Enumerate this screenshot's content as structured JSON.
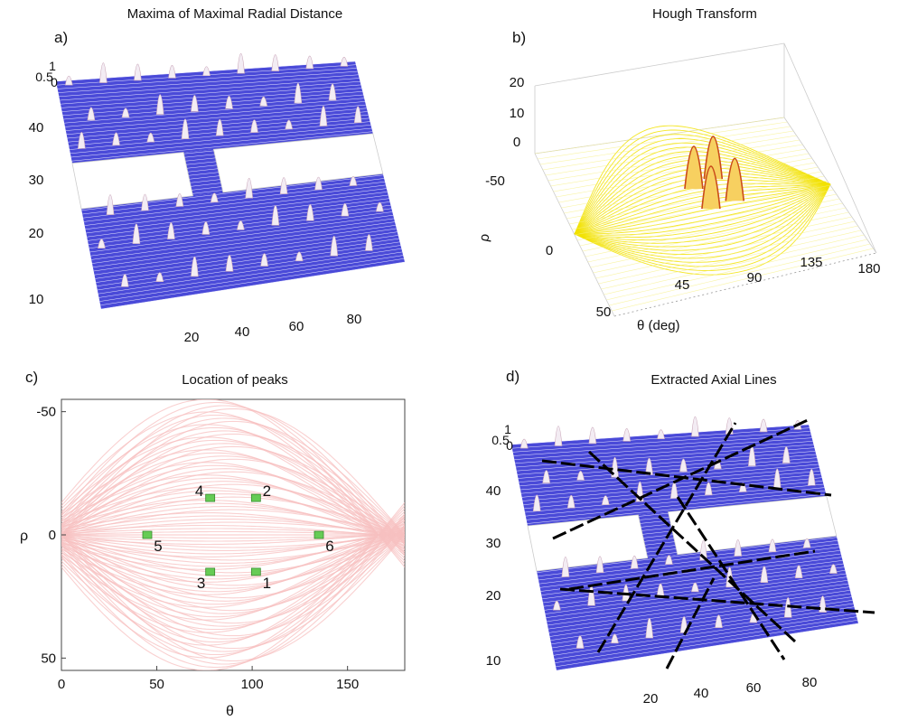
{
  "chart_data": [
    {
      "panel": "a)",
      "type": "surface",
      "title": "Maxima of Maximal Radial Distance",
      "xticks": [
        "20",
        "40",
        "60",
        "80"
      ],
      "yticks": [
        "10",
        "20",
        "30",
        "40"
      ],
      "zticks": [
        "0.5",
        "1",
        "0"
      ],
      "xlim": [
        0,
        95
      ],
      "ylim": [
        0,
        50
      ],
      "surface_color": "#4a4ad8",
      "peak_color": "#f0e6f0"
    },
    {
      "panel": "b)",
      "type": "surface",
      "title": "Hough Transform",
      "xlabel": "θ (deg)",
      "ylabel": "ρ",
      "xticks": [
        "45",
        "90",
        "135",
        "180"
      ],
      "yticks": [
        "-50",
        "0",
        "50"
      ],
      "zticks": [
        "0",
        "10",
        "20"
      ],
      "xlim": [
        0,
        180
      ],
      "ylim": [
        -50,
        50
      ],
      "zlim": [
        0,
        20
      ],
      "surface_color": "#f2e200",
      "peak_color": "#c94a1a"
    },
    {
      "panel": "c)",
      "type": "scatter",
      "title": "Location of peaks",
      "xlabel": "θ",
      "ylabel": "ρ",
      "xticks": [
        "0",
        "50",
        "100",
        "150"
      ],
      "yticks": [
        "-50",
        "0",
        "50"
      ],
      "xlim": [
        0,
        180
      ],
      "ylim": [
        -55,
        55
      ],
      "background_color": "#f7c0c0",
      "marker_color": "#66cc55",
      "points": [
        {
          "label": "1",
          "theta": 102,
          "rho": 15
        },
        {
          "label": "2",
          "theta": 102,
          "rho": -15
        },
        {
          "label": "3",
          "theta": 78,
          "rho": 15
        },
        {
          "label": "4",
          "theta": 78,
          "rho": -15
        },
        {
          "label": "5",
          "theta": 45,
          "rho": 0
        },
        {
          "label": "6",
          "theta": 135,
          "rho": 0
        }
      ]
    },
    {
      "panel": "d)",
      "type": "surface",
      "title": "Extracted Axial Lines",
      "xticks": [
        "20",
        "40",
        "60",
        "80"
      ],
      "yticks": [
        "10",
        "20",
        "30",
        "40"
      ],
      "zticks": [
        "0.5",
        "1",
        "0"
      ],
      "xlim": [
        0,
        95
      ],
      "ylim": [
        0,
        50
      ],
      "surface_color": "#4a4ad8",
      "line_color": "#000000"
    }
  ]
}
